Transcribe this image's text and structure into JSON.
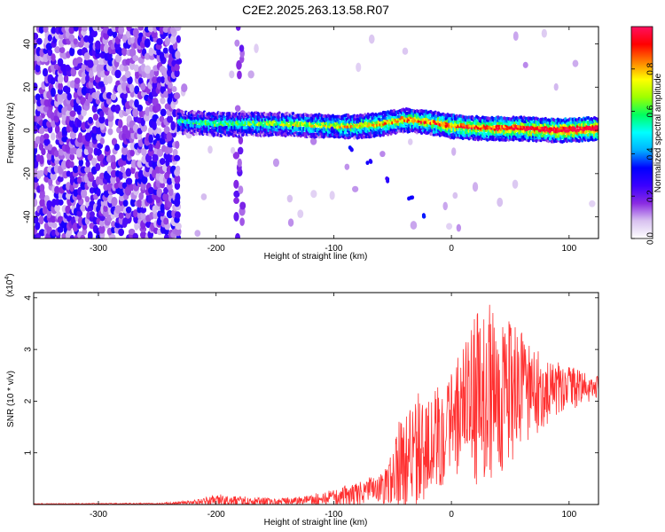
{
  "title": "C2E2.2025.263.13.58.R07",
  "chart_data": [
    {
      "type": "heatmap",
      "title": "C2E2.2025.263.13.58.R07",
      "xlabel": "Height of straight line (km)",
      "ylabel": "Frequency (Hz)",
      "xlim": [
        -355,
        125
      ],
      "ylim": [
        -50,
        48
      ],
      "xticks": [
        -300,
        -200,
        -100,
        0,
        100
      ],
      "yticks": [
        -40,
        -20,
        0,
        20,
        40
      ],
      "colorbar": {
        "label": "Normalized spectral amplitude",
        "range": [
          0.0,
          1.0
        ],
        "ticks": [
          0.0,
          0.2,
          0.4,
          0.6,
          0.8
        ],
        "tick_labels": [
          "0.0",
          "0.2",
          "0.4",
          "0.6",
          "0.8"
        ],
        "colormap": [
          "#ffffff",
          "#d8c2f0",
          "#8a2be2",
          "#3a00ff",
          "#0000ff",
          "#00b0ff",
          "#00ffff",
          "#00ff60",
          "#9dff00",
          "#ffff00",
          "#ff8000",
          "#ff0000",
          "#ff1060"
        ]
      },
      "features": {
        "noise_region_x": [
          -355,
          -232
        ],
        "interference_stripe_x": -180,
        "main_band_freq_hz": [
          [
            -232,
            4
          ],
          [
            -200,
            3
          ],
          [
            -150,
            3
          ],
          [
            -100,
            2
          ],
          [
            -80,
            2
          ],
          [
            -60,
            3
          ],
          [
            -40,
            5
          ],
          [
            -20,
            4
          ],
          [
            0,
            2
          ],
          [
            30,
            1
          ],
          [
            60,
            1
          ],
          [
            90,
            0
          ],
          [
            125,
            1
          ]
        ],
        "descending_branch": [
          [
            -100,
            0
          ],
          [
            -85,
            -8
          ],
          [
            -70,
            -15
          ],
          [
            -55,
            -23
          ],
          [
            -35,
            -32
          ],
          [
            -25,
            -40
          ]
        ]
      }
    },
    {
      "type": "line",
      "xlabel": "Height of straight line (km)",
      "ylabel": "SNR (10 * v/v)",
      "exponent_label": "(x10",
      "exponent_power": "4",
      "exponent_close": ")",
      "xlim": [
        -355,
        125
      ],
      "ylim": [
        0,
        4.1
      ],
      "xticks": [
        -300,
        -200,
        -100,
        0,
        100
      ],
      "yticks": [
        1,
        2,
        3,
        4
      ],
      "series": [
        {
          "name": "SNR",
          "color": "#ff3030",
          "envelope": [
            [
              -355,
              0.02
            ],
            [
              -250,
              0.03
            ],
            [
              -220,
              0.08
            ],
            [
              -200,
              0.2
            ],
            [
              -150,
              0.12
            ],
            [
              -120,
              0.2
            ],
            [
              -100,
              0.3
            ],
            [
              -80,
              0.45
            ],
            [
              -60,
              0.6
            ],
            [
              -50,
              1.0
            ],
            [
              -45,
              1.8
            ],
            [
              -40,
              1.9
            ],
            [
              -20,
              2.4
            ],
            [
              0,
              2.8
            ],
            [
              20,
              3.8
            ],
            [
              40,
              4.0
            ],
            [
              60,
              3.5
            ],
            [
              80,
              2.9
            ],
            [
              100,
              2.75
            ],
            [
              125,
              2.5
            ]
          ],
          "mean": [
            [
              -355,
              0.01
            ],
            [
              -250,
              0.015
            ],
            [
              -200,
              0.05
            ],
            [
              -150,
              0.04
            ],
            [
              -100,
              0.1
            ],
            [
              -70,
              0.2
            ],
            [
              -50,
              0.35
            ],
            [
              -40,
              0.7
            ],
            [
              -20,
              1.0
            ],
            [
              0,
              1.5
            ],
            [
              20,
              1.8
            ],
            [
              40,
              2.0
            ],
            [
              60,
              2.05
            ],
            [
              80,
              2.1
            ],
            [
              100,
              2.2
            ],
            [
              125,
              2.25
            ]
          ]
        }
      ]
    }
  ]
}
